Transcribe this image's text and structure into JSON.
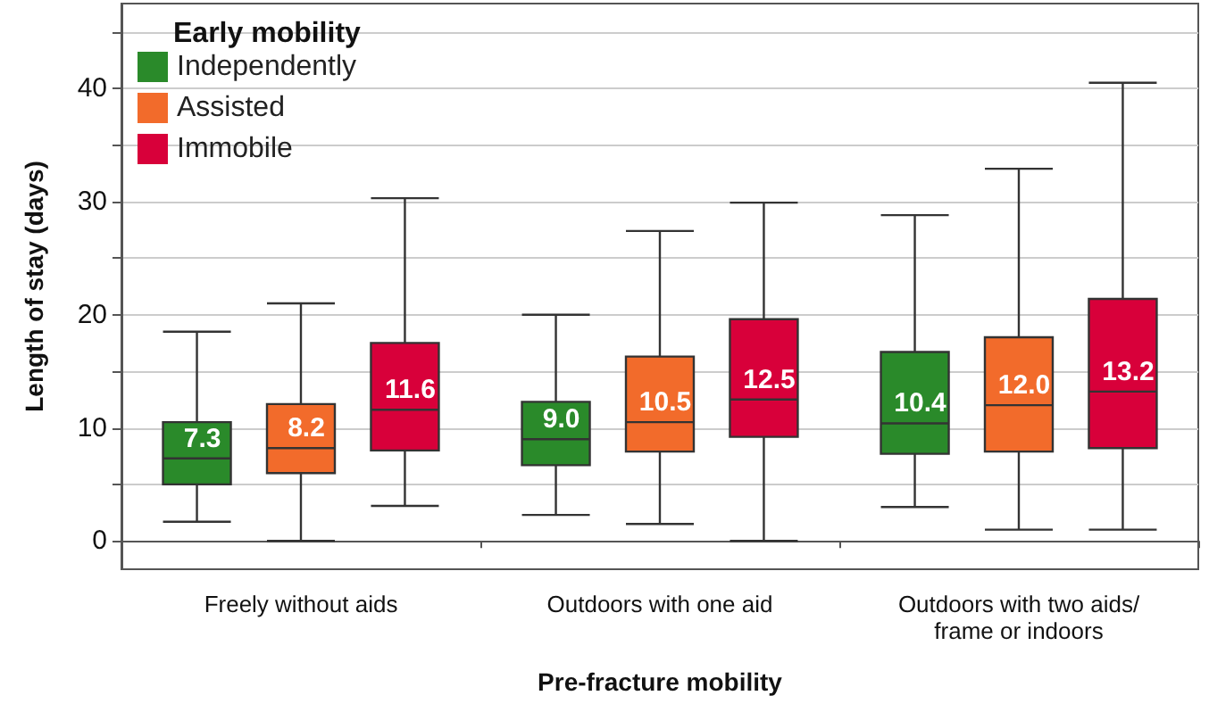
{
  "chart_data": {
    "type": "box",
    "xlabel": "Pre-fracture mobility",
    "ylabel": "Length of stay (days)",
    "legend_title": "Early mobility",
    "legend": "top left",
    "grid": "y",
    "categories": [
      "Freely without aids",
      "Outdoors with one aid",
      "Outdoors with two aids/frame or indoors"
    ],
    "ylim": [
      -2.5,
      47.5
    ],
    "yticks": [
      0,
      {
        "value": 5,
        "label": null
      },
      10,
      {
        "value": 15,
        "label": null
      },
      20,
      {
        "value": 25,
        "label": null
      },
      30,
      {
        "value": 35,
        "label": null
      },
      40,
      {
        "value": 45,
        "label": null
      }
    ],
    "series": [
      {
        "name": "Independently",
        "color": "#2a8a2a",
        "boxes": [
          {
            "low": 1.7,
            "q1": 5.0,
            "median": 7.3,
            "q3": 10.5,
            "high": 18.5
          },
          {
            "low": 2.3,
            "q1": 6.7,
            "median": 9.0,
            "q3": 12.3,
            "high": 20.0
          },
          {
            "low": 3.0,
            "q1": 7.7,
            "median": 10.4,
            "q3": 16.7,
            "high": 28.8
          }
        ],
        "value_labels": [
          "7.3",
          "9.0",
          "10.4"
        ]
      },
      {
        "name": "Assisted",
        "color": "#f26b2b",
        "boxes": [
          {
            "low": 0,
            "q1": 6.0,
            "median": 8.2,
            "q3": 12.1,
            "high": 21.0
          },
          {
            "low": 1.5,
            "q1": 7.9,
            "median": 10.5,
            "q3": 16.3,
            "high": 27.4
          },
          {
            "low": 1.0,
            "q1": 7.9,
            "median": 12.0,
            "q3": 18.0,
            "high": 32.9
          }
        ],
        "value_labels": [
          "8.2",
          "10.5",
          "12.0"
        ]
      },
      {
        "name": "Immobile",
        "color": "#d8003a",
        "boxes": [
          {
            "low": 3.1,
            "q1": 8.0,
            "median": 11.6,
            "q3": 17.5,
            "high": 30.3
          },
          {
            "low": 0,
            "q1": 9.2,
            "median": 12.5,
            "q3": 19.6,
            "high": 29.9
          },
          {
            "low": 1.0,
            "q1": 8.2,
            "median": 13.2,
            "q3": 21.4,
            "high": 40.5
          }
        ],
        "value_labels": [
          "11.6",
          "12.5",
          "13.2"
        ]
      }
    ]
  }
}
